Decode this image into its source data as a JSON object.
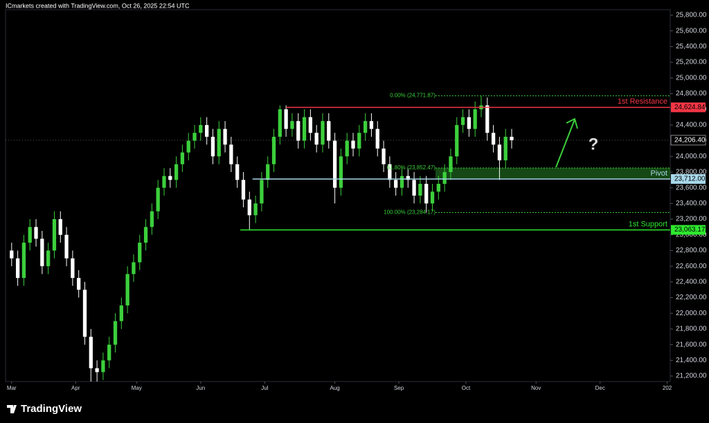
{
  "header": "ICmarkets created with TradingView.com, Oct 26, 2025 22:54 UTC",
  "footer": "TradingView",
  "chart_data": {
    "type": "candlestick",
    "x": [
      0,
      2,
      4,
      6,
      8,
      10,
      12,
      14,
      16,
      18,
      20,
      22,
      24,
      26,
      28,
      30,
      32,
      34,
      36,
      38,
      40,
      42,
      44,
      46,
      48,
      50,
      52,
      54,
      56,
      58,
      60,
      62,
      64,
      66,
      68,
      70,
      72,
      74,
      76,
      78,
      80,
      82,
      84,
      86,
      88,
      90,
      92,
      94,
      96,
      98,
      100,
      102,
      104,
      106,
      108,
      110,
      112,
      114,
      116,
      118,
      120,
      122,
      124,
      126,
      128,
      130,
      132,
      134,
      136,
      138,
      140,
      142,
      144,
      146,
      148,
      150,
      152,
      154,
      156,
      158,
      160,
      162,
      164
    ],
    "open": [
      22800,
      22700,
      22450,
      22900,
      23100,
      22950,
      22600,
      22800,
      23200,
      23000,
      22700,
      22450,
      22300,
      21700,
      21300,
      21250,
      21400,
      21600,
      21900,
      22100,
      22500,
      22650,
      22900,
      23100,
      23300,
      23600,
      23750,
      23700,
      23900,
      24050,
      24200,
      24300,
      24400,
      24250,
      24000,
      24350,
      24150,
      23900,
      23700,
      23450,
      23250,
      23400,
      23700,
      23900,
      24250,
      24600,
      24350,
      24450,
      24200,
      24500,
      24300,
      24150,
      24450,
      24200,
      23600,
      24000,
      24200,
      24100,
      24300,
      24450,
      24350,
      24100,
      23900,
      23700,
      23600,
      23750,
      23700,
      23500,
      23650,
      23400,
      23550,
      23650,
      23800,
      24000,
      24400,
      24500,
      24350,
      24600,
      24650,
      24300,
      24150,
      23950,
      24250
    ],
    "high": [
      22900,
      22800,
      23000,
      23200,
      23200,
      23050,
      22900,
      23300,
      23300,
      23100,
      22800,
      22550,
      22400,
      21800,
      21400,
      21500,
      21700,
      22000,
      22200,
      22600,
      22750,
      23000,
      23200,
      23400,
      23700,
      23850,
      23850,
      24000,
      24150,
      24300,
      24400,
      24500,
      24500,
      24350,
      24450,
      24450,
      24250,
      24000,
      23800,
      23550,
      23500,
      23800,
      24000,
      24350,
      24650,
      24650,
      24550,
      24550,
      24600,
      24600,
      24400,
      24550,
      24550,
      24300,
      24100,
      24300,
      24300,
      24400,
      24550,
      24550,
      24450,
      24200,
      24000,
      23800,
      23850,
      23850,
      23800,
      23750,
      23750,
      23650,
      23750,
      23900,
      24100,
      24500,
      24600,
      24600,
      24700,
      24771.87,
      24750,
      24400,
      24250,
      24350,
      24350
    ],
    "low": [
      22600,
      22350,
      22350,
      22800,
      22850,
      22500,
      22500,
      22700,
      22900,
      22600,
      22350,
      22200,
      21600,
      21100,
      21100,
      21150,
      21300,
      21500,
      21800,
      22000,
      22400,
      22550,
      22800,
      23000,
      23200,
      23500,
      23600,
      23600,
      23800,
      23950,
      24100,
      24200,
      24150,
      23900,
      23900,
      24050,
      23800,
      23600,
      23350,
      23063.17,
      23150,
      23300,
      23600,
      23800,
      24150,
      24250,
      24250,
      24100,
      24100,
      24200,
      24050,
      24050,
      24100,
      23400,
      23500,
      23900,
      24000,
      24000,
      24200,
      24250,
      24000,
      23800,
      23600,
      23500,
      23500,
      23600,
      23400,
      23400,
      23284.17,
      23300,
      23450,
      23550,
      23700,
      23900,
      24300,
      24250,
      24250,
      24500,
      24200,
      24050,
      23700,
      23850,
      24100
    ],
    "close": [
      22700,
      22450,
      22900,
      23100,
      22950,
      22600,
      22800,
      23200,
      23000,
      22700,
      22450,
      22300,
      21700,
      21300,
      21250,
      21400,
      21600,
      21900,
      22100,
      22500,
      22650,
      22900,
      23100,
      23300,
      23600,
      23750,
      23700,
      23900,
      24050,
      24200,
      24300,
      24400,
      24250,
      24000,
      24350,
      24150,
      23900,
      23700,
      23450,
      23250,
      23400,
      23700,
      23900,
      24250,
      24600,
      24350,
      24450,
      24200,
      24500,
      24300,
      24150,
      24450,
      24200,
      23600,
      24000,
      24200,
      24100,
      24300,
      24450,
      24350,
      24100,
      23900,
      23700,
      23600,
      23750,
      23700,
      23500,
      23650,
      23400,
      23550,
      23650,
      23800,
      24000,
      24400,
      24500,
      24350,
      24600,
      24650,
      24300,
      24150,
      23950,
      24250,
      24206.4
    ],
    "up_color": "#3ccf3c",
    "down_color": "#ffffff",
    "xlim": [
      -2,
      216
    ],
    "xticks": [
      {
        "value": 0,
        "label": "Mar"
      },
      {
        "value": 21,
        "label": "Apr"
      },
      {
        "value": 41,
        "label": "May"
      },
      {
        "value": 62,
        "label": "Jun"
      },
      {
        "value": 83,
        "label": "Jul"
      },
      {
        "value": 106,
        "label": "Aug"
      },
      {
        "value": 127,
        "label": "Sep"
      },
      {
        "value": 149,
        "label": "Oct"
      },
      {
        "value": 172,
        "label": "Nov"
      },
      {
        "value": 193,
        "label": "Dec"
      },
      {
        "value": 215,
        "label": "202"
      }
    ],
    "ylim": [
      21130,
      25870
    ],
    "yticks": [
      {
        "value": 21200,
        "label": "21,200.00"
      },
      {
        "value": 21400,
        "label": "21,400.00"
      },
      {
        "value": 21600,
        "label": "21,600.00"
      },
      {
        "value": 21800,
        "label": "21,800.00"
      },
      {
        "value": 22000,
        "label": "22,000.00"
      },
      {
        "value": 22200,
        "label": "22,200.00"
      },
      {
        "value": 22400,
        "label": "22,400.00"
      },
      {
        "value": 22600,
        "label": "22,600.00"
      },
      {
        "value": 22800,
        "label": "22,800.00"
      },
      {
        "value": 23000,
        "label": "23,000.00"
      },
      {
        "value": 23200,
        "label": "23,200.00"
      },
      {
        "value": 23400,
        "label": "23,400.00"
      },
      {
        "value": 23600,
        "label": "23,600.00"
      },
      {
        "value": 23800,
        "label": "23,800.00"
      },
      {
        "value": 24000,
        "label": "24,000.00"
      },
      {
        "value": 24200,
        "label": "24,200.00"
      },
      {
        "value": 24400,
        "label": "24,400.00"
      },
      {
        "value": 24600,
        "label": "24,600.00"
      },
      {
        "value": 24800,
        "label": "24,800.00"
      },
      {
        "value": 25000,
        "label": "25,000.00"
      },
      {
        "value": 25200,
        "label": "25,200.00"
      },
      {
        "value": 25400,
        "label": "25,400.00"
      },
      {
        "value": 25600,
        "label": "25,600.00"
      },
      {
        "value": 25800,
        "label": "25,800.00"
      }
    ],
    "grid": false,
    "levels": [
      {
        "name": "1st Resistance",
        "value": 24624.84,
        "label": "24,624.84",
        "color": "#f23645",
        "from": 90
      },
      {
        "name": "Pivot",
        "value": 23712,
        "label": "23,712.00",
        "color": "#a8d8ea",
        "from": 79
      },
      {
        "name": "1st Support",
        "value": 23063.17,
        "label": "23,063.17",
        "color": "#2ee82e",
        "from": 75
      }
    ],
    "fib": [
      {
        "label": "0.00% (24,771.87)",
        "value": 24771.87
      },
      {
        "label": "61.80% (23,852.47)",
        "value": 23852.47
      },
      {
        "label": "100.00% (23,284.17)",
        "value": 23284.17
      }
    ],
    "fib_from": 139,
    "fib_color": "#3ccf3c",
    "last_price": {
      "value": 24206.4,
      "label": "24,206.40"
    },
    "annotation": "?"
  }
}
